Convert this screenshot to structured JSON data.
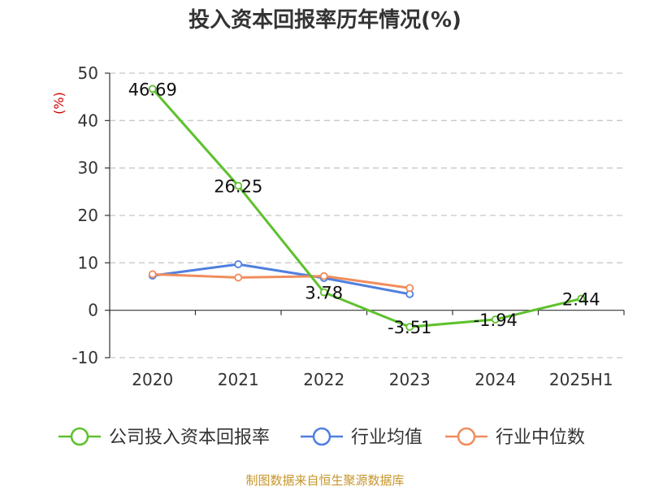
{
  "chart_data": {
    "type": "line",
    "title": "投入资本回报率历年情况(%)",
    "ylabel": "(%)",
    "xlabel": "",
    "categories": [
      "2020",
      "2021",
      "2022",
      "2023",
      "2024",
      "2025H1"
    ],
    "ylim": [
      -10,
      50
    ],
    "yticks": [
      50,
      40,
      30,
      20,
      10,
      0,
      -10
    ],
    "grid": true,
    "legend_position": "bottom",
    "series": [
      {
        "name": "公司投入资本回报率",
        "color": "#5ec12e",
        "values": [
          46.69,
          26.25,
          3.78,
          -3.51,
          -1.94,
          2.44
        ],
        "labels": [
          "46.69",
          "26.25",
          "3.78",
          "-3.51",
          "-1.94",
          "2.44"
        ],
        "show_labels": true
      },
      {
        "name": "行业均值",
        "color": "#4f7fdf",
        "values": [
          7.3,
          9.7,
          6.8,
          3.4,
          null,
          null
        ],
        "show_labels": false
      },
      {
        "name": "行业中位数",
        "color": "#f08d5e",
        "values": [
          7.6,
          6.9,
          7.2,
          4.7,
          null,
          null
        ],
        "show_labels": false
      }
    ]
  },
  "unit_color": "#cc0000",
  "source": {
    "text": "制图数据来自恒生聚源数据库",
    "color": "#c7952b"
  }
}
